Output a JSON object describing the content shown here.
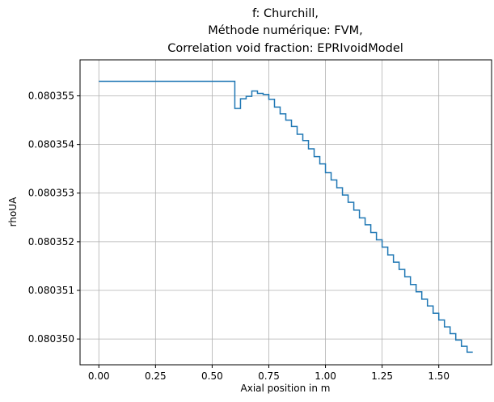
{
  "chart_data": {
    "type": "line",
    "step": true,
    "title_lines": [
      "f: Churchill,",
      "Méthode numérique: FVM,",
      "Correlation void fraction: EPRIvoidModel"
    ],
    "xlabel": "Axial position in m",
    "ylabel": "rhoUA",
    "xlim": [
      -0.083,
      1.733
    ],
    "ylim": [
      0.08034947,
      0.08035574
    ],
    "xticks": [
      0.0,
      0.25,
      0.5,
      0.75,
      1.0,
      1.25,
      1.5
    ],
    "xtick_labels": [
      "0.00",
      "0.25",
      "0.50",
      "0.75",
      "1.00",
      "1.25",
      "1.50"
    ],
    "yticks": [
      0.08035,
      0.080351,
      0.080352,
      0.080353,
      0.080354,
      0.080355
    ],
    "ytick_labels": [
      "0.080350",
      "0.080351",
      "0.080352",
      "0.080353",
      "0.080354",
      "0.080355"
    ],
    "grid": true,
    "color": "#1f77b4",
    "series": [
      {
        "x": [
          0.0,
          0.6,
          0.6,
          0.625,
          0.625,
          0.65,
          0.65,
          0.675,
          0.675,
          0.7,
          0.7,
          0.725,
          0.725,
          0.75,
          0.75,
          0.775,
          0.775,
          0.8,
          0.8,
          0.825,
          0.825,
          0.85,
          0.85,
          0.875,
          0.875,
          0.9,
          0.9,
          0.925,
          0.925,
          0.95,
          0.95,
          0.975,
          0.975,
          1.0,
          1.0,
          1.025,
          1.025,
          1.05,
          1.05,
          1.075,
          1.075,
          1.1,
          1.1,
          1.125,
          1.125,
          1.15,
          1.15,
          1.175,
          1.175,
          1.2,
          1.2,
          1.225,
          1.225,
          1.25,
          1.25,
          1.275,
          1.275,
          1.3,
          1.3,
          1.325,
          1.325,
          1.35,
          1.35,
          1.375,
          1.375,
          1.4,
          1.4,
          1.425,
          1.425,
          1.45,
          1.45,
          1.475,
          1.475,
          1.5,
          1.5,
          1.525,
          1.525,
          1.55,
          1.55,
          1.575,
          1.575,
          1.6,
          1.6,
          1.625,
          1.625,
          1.65
        ],
        "y": [
          0.0803553,
          0.0803553,
          0.08035474,
          0.08035474,
          0.08035494,
          0.08035494,
          0.08035499,
          0.08035499,
          0.0803551,
          0.0803551,
          0.08035505,
          0.08035505,
          0.08035503,
          0.08035503,
          0.08035493,
          0.08035493,
          0.08035477,
          0.08035477,
          0.08035463,
          0.08035463,
          0.0803545,
          0.0803545,
          0.08035437,
          0.08035437,
          0.08035421,
          0.08035421,
          0.08035408,
          0.08035408,
          0.08035391,
          0.08035391,
          0.08035375,
          0.08035375,
          0.0803536,
          0.0803536,
          0.08035342,
          0.08035342,
          0.08035327,
          0.08035327,
          0.08035311,
          0.08035311,
          0.08035296,
          0.08035296,
          0.08035281,
          0.08035281,
          0.08035265,
          0.08035265,
          0.08035249,
          0.08035249,
          0.08035235,
          0.08035235,
          0.08035219,
          0.08035219,
          0.08035204,
          0.08035204,
          0.08035189,
          0.08035189,
          0.08035173,
          0.08035173,
          0.08035158,
          0.08035158,
          0.08035143,
          0.08035143,
          0.08035128,
          0.08035128,
          0.08035112,
          0.08035112,
          0.08035097,
          0.08035097,
          0.08035082,
          0.08035082,
          0.08035068,
          0.08035068,
          0.08035053,
          0.08035053,
          0.08035039,
          0.08035039,
          0.08035025,
          0.08035025,
          0.08035011,
          0.08035011,
          0.08034998,
          0.08034998,
          0.08034985,
          0.08034985,
          0.08034973,
          0.08034973
        ]
      }
    ]
  }
}
